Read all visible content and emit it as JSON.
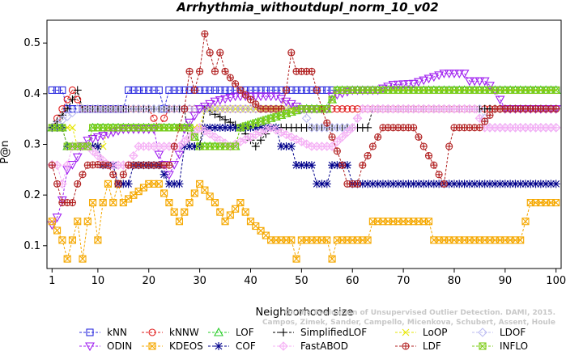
{
  "chart_data": {
    "type": "line",
    "title": "Arrhythmia_withoutdupl_norm_10_v02",
    "xlabel": "Neighborhood size",
    "ylabel": "P@n",
    "xlim": [
      0,
      101
    ],
    "ylim": [
      0.055,
      0.545
    ],
    "x_ticks": [
      1,
      10,
      20,
      30,
      40,
      50,
      60,
      70,
      80,
      90,
      100
    ],
    "y_ticks": [
      0.1,
      0.2,
      0.3,
      0.4,
      0.5
    ],
    "legend_position": "bottom",
    "credit": "Campos, Zimek, Sander, Campello, Micenkova, Schubert, Assent, Houle\nOn the Evaluation of Unsupervised Outlier Detection. DAMI, 2015.",
    "series": [
      {
        "name": "kNN",
        "color": "#2b2bde",
        "marker": "square",
        "points": [
          [
            1,
            0.407
          ],
          [
            3,
            0.407
          ],
          [
            4,
            0.37
          ],
          [
            15,
            0.37
          ],
          [
            16,
            0.407
          ],
          [
            22,
            0.407
          ],
          [
            23,
            0.37
          ],
          [
            24,
            0.407
          ],
          [
            100,
            0.407
          ]
        ]
      },
      {
        "name": "kNNW",
        "color": "#e01b1b",
        "marker": "circle",
        "points": [
          [
            1,
            0.333
          ],
          [
            3,
            0.37
          ],
          [
            5,
            0.407
          ],
          [
            7,
            0.37
          ],
          [
            20,
            0.37
          ],
          [
            22,
            0.333
          ],
          [
            24,
            0.37
          ],
          [
            100,
            0.37
          ]
        ]
      },
      {
        "name": "LOF",
        "color": "#27cc27",
        "marker": "triangle",
        "points": [
          [
            1,
            0.333
          ],
          [
            3,
            0.333
          ],
          [
            4,
            0.296
          ],
          [
            8,
            0.296
          ],
          [
            9,
            0.333
          ],
          [
            28,
            0.333
          ],
          [
            30,
            0.296
          ],
          [
            37,
            0.296
          ],
          [
            38,
            0.333
          ],
          [
            50,
            0.37
          ],
          [
            55,
            0.37
          ],
          [
            57,
            0.407
          ],
          [
            100,
            0.407
          ]
        ]
      },
      {
        "name": "SimplifiedLOF",
        "color": "#000000",
        "marker": "plus",
        "points": [
          [
            1,
            0.333
          ],
          [
            4,
            0.37
          ],
          [
            6,
            0.407
          ],
          [
            7,
            0.37
          ],
          [
            27,
            0.37
          ],
          [
            28,
            0.296
          ],
          [
            30,
            0.296
          ],
          [
            31,
            0.37
          ],
          [
            38,
            0.333
          ],
          [
            41,
            0.296
          ],
          [
            44,
            0.333
          ],
          [
            63,
            0.333
          ],
          [
            64,
            0.37
          ],
          [
            100,
            0.37
          ]
        ]
      },
      {
        "name": "LoOP",
        "color": "#e6e600",
        "marker": "x",
        "points": [
          [
            1,
            0.333
          ],
          [
            5,
            0.333
          ],
          [
            6,
            0.296
          ],
          [
            11,
            0.296
          ],
          [
            12,
            0.333
          ],
          [
            30,
            0.333
          ],
          [
            31,
            0.37
          ],
          [
            55,
            0.37
          ],
          [
            57,
            0.407
          ],
          [
            100,
            0.407
          ]
        ]
      },
      {
        "name": "LDOF",
        "color": "#bdbdf2",
        "marker": "diamond",
        "points": [
          [
            1,
            0.333
          ],
          [
            6,
            0.37
          ],
          [
            50,
            0.37
          ],
          [
            52,
            0.333
          ],
          [
            60,
            0.333
          ],
          [
            62,
            0.37
          ],
          [
            85,
            0.37
          ],
          [
            87,
            0.333
          ],
          [
            100,
            0.333
          ]
        ]
      },
      {
        "name": "ODIN",
        "color": "#a020f0",
        "marker": "triangledown",
        "points": [
          [
            1,
            0.141
          ],
          [
            2,
            0.156
          ],
          [
            3,
            0.19
          ],
          [
            4,
            0.25
          ],
          [
            5,
            0.26
          ],
          [
            6,
            0.275
          ],
          [
            7,
            0.297
          ],
          [
            8,
            0.308
          ],
          [
            15,
            0.33
          ],
          [
            21,
            0.33
          ],
          [
            22,
            0.28
          ],
          [
            24,
            0.24
          ],
          [
            25,
            0.26
          ],
          [
            26,
            0.28
          ],
          [
            27,
            0.33
          ],
          [
            30,
            0.37
          ],
          [
            33,
            0.385
          ],
          [
            37,
            0.395
          ],
          [
            45,
            0.395
          ],
          [
            50,
            0.37
          ],
          [
            55,
            0.37
          ],
          [
            56,
            0.395
          ],
          [
            60,
            0.407
          ],
          [
            65,
            0.407
          ],
          [
            68,
            0.418
          ],
          [
            72,
            0.42
          ],
          [
            78,
            0.44
          ],
          [
            82,
            0.44
          ],
          [
            83,
            0.425
          ],
          [
            86,
            0.425
          ],
          [
            88,
            0.407
          ],
          [
            90,
            0.37
          ],
          [
            100,
            0.37
          ]
        ]
      },
      {
        "name": "KDEOS",
        "color": "#f5a800",
        "marker": "boxx",
        "points": [
          [
            1,
            0.148
          ],
          [
            2,
            0.13
          ],
          [
            3,
            0.111
          ],
          [
            4,
            0.074
          ],
          [
            5,
            0.111
          ],
          [
            6,
            0.148
          ],
          [
            7,
            0.074
          ],
          [
            8,
            0.148
          ],
          [
            9,
            0.185
          ],
          [
            10,
            0.111
          ],
          [
            11,
            0.185
          ],
          [
            12,
            0.222
          ],
          [
            13,
            0.185
          ],
          [
            14,
            0.222
          ],
          [
            15,
            0.185
          ],
          [
            20,
            0.222
          ],
          [
            22,
            0.222
          ],
          [
            24,
            0.185
          ],
          [
            26,
            0.148
          ],
          [
            28,
            0.185
          ],
          [
            30,
            0.222
          ],
          [
            33,
            0.185
          ],
          [
            35,
            0.148
          ],
          [
            38,
            0.185
          ],
          [
            40,
            0.148
          ],
          [
            44,
            0.111
          ],
          [
            48,
            0.111
          ],
          [
            49,
            0.074
          ],
          [
            50,
            0.111
          ],
          [
            55,
            0.111
          ],
          [
            56,
            0.074
          ],
          [
            57,
            0.111
          ],
          [
            63,
            0.111
          ],
          [
            64,
            0.148
          ],
          [
            75,
            0.148
          ],
          [
            76,
            0.111
          ],
          [
            93,
            0.111
          ],
          [
            94,
            0.148
          ],
          [
            95,
            0.185
          ],
          [
            100,
            0.185
          ]
        ]
      },
      {
        "name": "COF",
        "color": "#00008b",
        "marker": "star",
        "points": [
          [
            1,
            0.333
          ],
          [
            3,
            0.333
          ],
          [
            4,
            0.296
          ],
          [
            10,
            0.296
          ],
          [
            11,
            0.259
          ],
          [
            13,
            0.259
          ],
          [
            14,
            0.222
          ],
          [
            16,
            0.222
          ],
          [
            17,
            0.259
          ],
          [
            22,
            0.259
          ],
          [
            24,
            0.222
          ],
          [
            26,
            0.222
          ],
          [
            27,
            0.296
          ],
          [
            30,
            0.296
          ],
          [
            31,
            0.333
          ],
          [
            45,
            0.333
          ],
          [
            46,
            0.296
          ],
          [
            48,
            0.296
          ],
          [
            49,
            0.259
          ],
          [
            52,
            0.259
          ],
          [
            53,
            0.222
          ],
          [
            55,
            0.222
          ],
          [
            56,
            0.259
          ],
          [
            58,
            0.259
          ],
          [
            59,
            0.259
          ],
          [
            60,
            0.222
          ],
          [
            62,
            0.222
          ],
          [
            63,
            0.222
          ],
          [
            64,
            0.222
          ],
          [
            100,
            0.222
          ]
        ]
      },
      {
        "name": "FastABOD",
        "color": "#f5b0f5",
        "marker": "diamondplus",
        "points": [
          [
            1,
            0.26
          ],
          [
            2,
            0.259
          ],
          [
            3,
            0.222
          ],
          [
            5,
            0.296
          ],
          [
            8,
            0.296
          ],
          [
            12,
            0.259
          ],
          [
            16,
            0.259
          ],
          [
            18,
            0.296
          ],
          [
            22,
            0.296
          ],
          [
            26,
            0.296
          ],
          [
            30,
            0.333
          ],
          [
            36,
            0.296
          ],
          [
            44,
            0.333
          ],
          [
            52,
            0.296
          ],
          [
            56,
            0.296
          ],
          [
            60,
            0.333
          ],
          [
            62,
            0.37
          ],
          [
            84,
            0.37
          ],
          [
            86,
            0.333
          ],
          [
            100,
            0.333
          ]
        ]
      },
      {
        "name": "LDF",
        "color": "#b22222",
        "marker": "circleplus",
        "points": [
          [
            1,
            0.259
          ],
          [
            2,
            0.222
          ],
          [
            3,
            0.185
          ],
          [
            5,
            0.185
          ],
          [
            6,
            0.222
          ],
          [
            8,
            0.259
          ],
          [
            10,
            0.26
          ],
          [
            12,
            0.259
          ],
          [
            14,
            0.222
          ],
          [
            16,
            0.259
          ],
          [
            20,
            0.259
          ],
          [
            24,
            0.259
          ],
          [
            27,
            0.37
          ],
          [
            28,
            0.444
          ],
          [
            29,
            0.407
          ],
          [
            30,
            0.444
          ],
          [
            31,
            0.518
          ],
          [
            32,
            0.481
          ],
          [
            33,
            0.444
          ],
          [
            34,
            0.481
          ],
          [
            35,
            0.444
          ],
          [
            38,
            0.407
          ],
          [
            42,
            0.37
          ],
          [
            46,
            0.37
          ],
          [
            47,
            0.407
          ],
          [
            48,
            0.481
          ],
          [
            49,
            0.444
          ],
          [
            52,
            0.444
          ],
          [
            54,
            0.37
          ],
          [
            58,
            0.259
          ],
          [
            59,
            0.222
          ],
          [
            61,
            0.222
          ],
          [
            62,
            0.259
          ],
          [
            64,
            0.296
          ],
          [
            66,
            0.333
          ],
          [
            72,
            0.333
          ],
          [
            76,
            0.259
          ],
          [
            78,
            0.222
          ],
          [
            79,
            0.296
          ],
          [
            80,
            0.333
          ],
          [
            85,
            0.333
          ],
          [
            88,
            0.37
          ],
          [
            100,
            0.37
          ]
        ]
      },
      {
        "name": "INFLO",
        "color": "#7fcc19",
        "marker": "squarex",
        "points": [
          [
            1,
            0.333
          ],
          [
            3,
            0.333
          ],
          [
            4,
            0.296
          ],
          [
            8,
            0.296
          ],
          [
            9,
            0.333
          ],
          [
            28,
            0.333
          ],
          [
            30,
            0.296
          ],
          [
            37,
            0.296
          ],
          [
            38,
            0.333
          ],
          [
            50,
            0.37
          ],
          [
            55,
            0.37
          ],
          [
            57,
            0.407
          ],
          [
            100,
            0.407
          ]
        ]
      }
    ],
    "legend_order": [
      "kNN",
      "kNNW",
      "LOF",
      "SimplifiedLOF",
      "LoOP",
      "LDOF",
      "ODIN",
      "KDEOS",
      "COF",
      "FastABOD",
      "LDF",
      "INFLO"
    ]
  }
}
